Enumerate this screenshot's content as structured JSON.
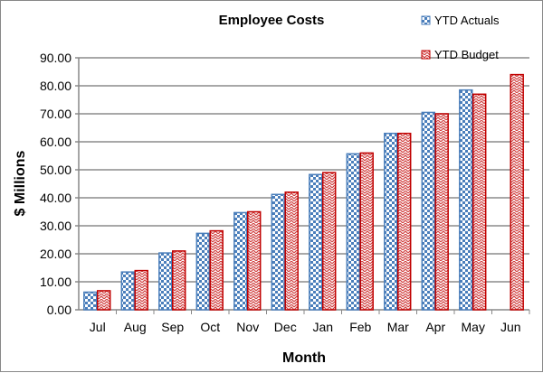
{
  "chart_data": {
    "type": "bar",
    "title": "Employee Costs",
    "xlabel": "Month",
    "ylabel": "$ Millions",
    "ylim": [
      0,
      90
    ],
    "yticks": [
      "0.00",
      "10.00",
      "20.00",
      "30.00",
      "40.00",
      "50.00",
      "60.00",
      "70.00",
      "80.00",
      "90.00"
    ],
    "categories": [
      "Jul",
      "Aug",
      "Sep",
      "Oct",
      "Nov",
      "Dec",
      "Jan",
      "Feb",
      "Mar",
      "Apr",
      "May",
      "Jun"
    ],
    "series": [
      {
        "name": "YTD Actuals",
        "color": "#4a7ebb",
        "values": [
          6.3,
          13.5,
          20.3,
          27.3,
          34.7,
          41.2,
          48.3,
          55.7,
          63.0,
          70.5,
          78.5,
          null
        ]
      },
      {
        "name": "YTD Budget",
        "color": "#c00000",
        "values": [
          6.8,
          14.0,
          21.0,
          28.2,
          35.0,
          42.0,
          49.0,
          56.0,
          63.0,
          70.0,
          77.0,
          84.0
        ]
      }
    ],
    "grid": true,
    "legend": "top-right"
  }
}
